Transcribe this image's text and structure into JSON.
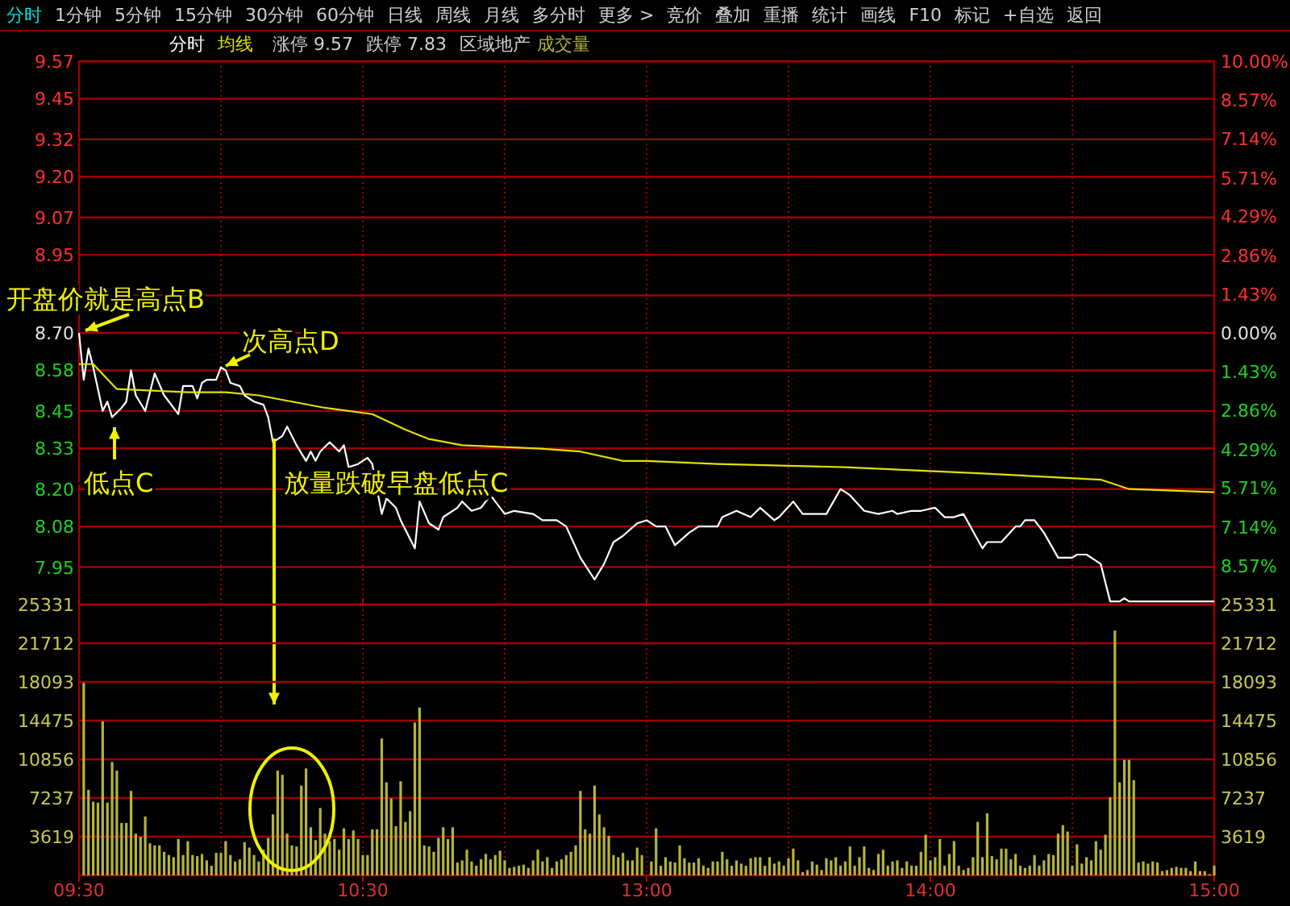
{
  "chart_data": [
    {
      "type": "other",
      "annotations": [
        "分时",
        "1分钟",
        "5分钟",
        "15分钟",
        "30分钟",
        "60分钟",
        "日线",
        "周线",
        "月线",
        "多分时",
        "更多 >",
        "竞价",
        "叠加",
        "重播",
        "统计",
        "画线",
        "F10",
        "标记",
        "+自选",
        "返回"
      ]
    },
    {
      "type": "line",
      "ylim": [
        7.83,
        9.57
      ],
      "yticks": [
        9.57,
        9.45,
        9.32,
        {
          "value": 9.2,
          "label": "9.20"
        },
        9.07,
        8.95,
        {
          "value": 8.82,
          "label": null
        },
        {
          "value": 8.7,
          "label": "8.70"
        },
        8.58,
        8.45,
        8.33,
        {
          "value": 8.2,
          "label": "8.20"
        },
        8.08,
        7.95
      ],
      "y2lim": [
        -10,
        10
      ],
      "y2ticks": [
        {
          "value": 10,
          "label": "10.00%"
        },
        {
          "value": 8.57,
          "label": "8.57%"
        },
        {
          "value": 7.14,
          "label": "7.14%"
        },
        {
          "value": 5.71,
          "label": "5.71%"
        },
        {
          "value": 4.29,
          "label": "4.29%"
        },
        {
          "value": 2.86,
          "label": "2.86%"
        },
        {
          "value": 1.43,
          "label": "1.43%"
        },
        {
          "value": 0,
          "label": "0.00%"
        },
        {
          "value": -1.43,
          "label": "1.43%"
        },
        {
          "value": -2.86,
          "label": "2.86%"
        },
        {
          "value": -4.29,
          "label": "4.29%"
        },
        {
          "value": -5.71,
          "label": "5.71%"
        },
        {
          "value": -7.14,
          "label": "7.14%"
        },
        {
          "value": -8.57,
          "label": "8.57%"
        }
      ],
      "grid": true,
      "legend": "top left",
      "tick_labels": "y",
      "series": [
        {
          "name": "分时",
          "color": "#ffffff",
          "values": [
            8.7,
            8.55,
            8.65,
            8.59,
            null,
            8.45,
            8.48,
            8.43,
            null,
            8.46,
            8.48,
            8.58,
            8.5,
            null,
            8.45,
            null,
            8.57,
            null,
            8.5,
            null,
            null,
            8.44,
            8.53,
            null,
            8.53,
            8.49,
            8.54,
            8.55,
            null,
            8.55,
            8.59,
            8.58,
            8.54,
            null,
            8.53,
            8.5,
            null,
            8.48,
            null,
            8.47,
            8.43,
            8.35,
            null,
            8.37,
            8.4,
            null,
            8.34,
            null,
            8.29,
            8.32,
            8.29,
            8.32,
            null,
            8.35,
            null,
            8.32,
            8.34,
            8.27,
            null,
            8.28,
            null,
            8.3,
            8.28,
            null,
            8.12,
            8.17,
            null,
            8.14,
            8.1,
            null,
            null,
            8.01,
            8.16,
            null,
            8.09,
            null,
            8.07,
            8.11,
            null,
            null,
            8.14,
            8.16,
            null,
            8.13,
            null,
            8.14,
            null,
            8.18,
            null,
            null,
            8.12,
            null,
            8.13,
            null,
            null,
            null,
            8.12,
            null,
            8.1,
            null,
            null,
            8.1,
            null,
            8.08,
            null,
            null,
            7.98,
            null,
            null,
            7.91,
            null,
            7.96,
            null,
            8.03,
            null,
            8.05,
            null,
            null,
            8.09,
            null,
            8.1,
            null,
            8.08,
            null,
            8.08,
            null,
            8.02,
            null,
            null,
            8.06,
            null,
            8.08,
            null,
            null,
            null,
            8.08,
            8.11,
            null,
            null,
            8.13,
            null,
            null,
            8.11,
            null,
            8.14,
            null,
            null,
            8.1,
            8.11,
            null,
            null,
            8.16,
            null,
            8.12,
            null,
            null,
            null,
            null,
            8.12,
            null,
            null,
            8.2,
            null,
            8.18,
            null,
            null,
            8.13,
            null,
            null,
            8.12,
            null,
            null,
            8.13,
            8.12,
            null,
            null,
            8.13,
            null,
            8.13,
            null,
            null,
            8.14,
            null,
            8.11,
            null,
            8.11,
            null,
            8.12,
            null,
            null,
            null,
            8.01,
            8.03,
            null,
            null,
            8.03,
            null,
            null,
            8.08,
            8.08,
            8.1,
            null,
            8.1,
            null,
            8.06,
            null,
            null,
            7.98,
            null,
            null,
            7.98,
            7.99,
            null,
            7.99,
            null,
            null,
            7.96,
            null,
            7.84,
            null,
            7.84,
            7.85,
            7.84,
            null,
            null,
            null,
            null,
            null,
            null,
            null,
            null,
            null,
            null,
            null,
            null,
            null,
            null,
            null,
            null,
            null,
            7.84
          ]
        },
        {
          "name": "均线",
          "color": "#e0e000",
          "values": [
            8.6,
            null,
            null,
            8.6,
            null,
            null,
            null,
            null,
            8.52,
            null,
            null,
            null,
            null,
            null,
            null,
            null,
            null,
            null,
            null,
            null,
            null,
            null,
            null,
            8.51,
            null,
            null,
            null,
            null,
            null,
            null,
            null,
            8.51,
            null,
            null,
            null,
            null,
            null,
            null,
            8.5,
            null,
            null,
            null,
            null,
            null,
            null,
            8.48,
            null,
            null,
            null,
            null,
            null,
            null,
            8.46,
            null,
            null,
            null,
            null,
            null,
            null,
            null,
            null,
            null,
            8.44,
            null,
            null,
            null,
            null,
            null,
            null,
            8.39,
            null,
            null,
            null,
            null,
            8.36,
            null,
            null,
            null,
            null,
            null,
            null,
            8.34,
            null,
            null,
            null,
            null,
            null,
            null,
            null,
            null,
            null,
            null,
            null,
            null,
            null,
            null,
            null,
            8.33,
            null,
            null,
            null,
            null,
            null,
            null,
            null,
            null,
            8.32,
            null,
            null,
            null,
            null,
            null,
            null,
            null,
            null,
            8.29,
            null,
            null,
            null,
            null,
            8.29,
            null,
            null,
            null,
            null,
            null,
            null,
            null,
            null,
            null,
            null,
            null,
            null,
            null,
            null,
            8.28,
            null,
            null,
            null,
            null,
            null,
            null,
            null,
            null,
            null,
            null,
            null,
            null,
            null,
            null,
            null,
            null,
            null,
            null,
            null,
            null,
            null,
            null,
            null,
            null,
            null,
            null,
            8.27,
            null,
            null,
            null,
            null,
            null,
            null,
            null,
            null,
            null,
            null,
            null,
            null,
            null,
            null,
            null,
            null,
            null,
            null,
            null,
            null,
            null,
            null,
            null,
            null,
            null,
            null,
            null,
            null,
            8.25,
            null,
            null,
            null,
            null,
            null,
            null,
            null,
            null,
            null,
            null,
            null,
            null,
            null,
            null,
            null,
            null,
            null,
            null,
            null,
            null,
            null,
            null,
            null,
            null,
            8.23,
            null,
            null,
            null,
            null,
            null,
            8.2,
            null,
            null,
            null,
            null,
            null,
            null,
            null,
            null,
            null,
            null,
            null,
            null,
            null,
            null,
            null,
            null,
            null,
            8.19
          ]
        }
      ],
      "annotations": [
        "涨停 9.57",
        "跌停 7.83",
        "区域地产",
        "开盘价就是高点B",
        "次高点D",
        "低点C",
        "放量跌破早盘低点C"
      ]
    },
    {
      "type": "bar",
      "categories": [
        "09:30",
        null,
        null,
        null,
        null,
        null,
        null,
        null,
        null,
        null,
        null,
        null,
        null,
        null,
        null,
        null,
        null,
        null,
        null,
        null,
        null,
        null,
        null,
        null,
        null,
        null,
        null,
        null,
        null,
        null,
        null,
        null,
        null,
        null,
        null,
        null,
        null,
        null,
        null,
        null,
        null,
        null,
        null,
        null,
        null,
        null,
        null,
        null,
        null,
        null,
        null,
        null,
        null,
        null,
        null,
        null,
        null,
        null,
        null,
        null,
        "10:30",
        null,
        null,
        null,
        null,
        null,
        null,
        null,
        null,
        null,
        null,
        null,
        null,
        null,
        null,
        null,
        null,
        null,
        null,
        null,
        null,
        null,
        null,
        null,
        null,
        null,
        null,
        null,
        null,
        null,
        null,
        null,
        null,
        null,
        null,
        null,
        null,
        null,
        null,
        null,
        null,
        null,
        null,
        null,
        null,
        null,
        null,
        null,
        null,
        null,
        null,
        null,
        null,
        null,
        null,
        null,
        null,
        null,
        null,
        null,
        "13:00",
        null,
        null,
        null,
        null,
        null,
        null,
        null,
        null,
        null,
        null,
        null,
        null,
        null,
        null,
        null,
        null,
        null,
        null,
        null,
        null,
        null,
        null,
        null,
        null,
        null,
        null,
        null,
        null,
        null,
        null,
        null,
        null,
        null,
        null,
        null,
        null,
        null,
        null,
        null,
        null,
        null,
        null,
        null,
        null,
        null,
        null,
        null,
        null,
        null,
        null,
        null,
        null,
        null,
        null,
        null,
        null,
        null,
        null,
        null,
        "14:00",
        null,
        null,
        null,
        null,
        null,
        null,
        null,
        null,
        null,
        null,
        null,
        null,
        null,
        null,
        null,
        null,
        null,
        null,
        null,
        null,
        null,
        null,
        null,
        null,
        null,
        null,
        null,
        null,
        null,
        null,
        null,
        null,
        null,
        null,
        null,
        null,
        null,
        null,
        null,
        null,
        null,
        null,
        null,
        null,
        null,
        null,
        null,
        null,
        null,
        null,
        null,
        null,
        null,
        null,
        null,
        null,
        null,
        null,
        null,
        "15:00"
      ],
      "ylim": [
        0,
        25331
      ],
      "yticks": [
        3619,
        7237,
        10856,
        14475,
        18093,
        21712,
        25331
      ],
      "y2lim": [
        0,
        25331
      ],
      "y2ticks": [
        3619,
        7237,
        10856,
        14475,
        18093,
        21712,
        25331
      ],
      "grid": true,
      "legend": "top left",
      "series": [
        {
          "name": "成交量",
          "color": "#b4b43c",
          "values": [
            null,
            18000,
            8000,
            6900,
            6800,
            14400,
            6800,
            10600,
            9800,
            4900,
            4900,
            7900,
            3900,
            3600,
            5500,
            3000,
            2800,
            2800,
            2200,
            1900,
            1700,
            3400,
            1900,
            3200,
            1900,
            1800,
            2000,
            1400,
            900,
            2100,
            2100,
            3200,
            1900,
            1300,
            1500,
            3100,
            2600,
            1900,
            1300,
            2400,
            3500,
            5700,
            9800,
            9400,
            3900,
            2800,
            2700,
            8400,
            10000,
            4500,
            3300,
            6300,
            3900,
            3200,
            3400,
            2400,
            4400,
            3400,
            4200,
            3400,
            1900,
            1900,
            4300,
            4300,
            12800,
            8700,
            7200,
            4600,
            8800,
            5000,
            6000,
            14300,
            15700,
            2800,
            2700,
            2200,
            3500,
            4500,
            3400,
            4500,
            1200,
            1400,
            2400,
            1300,
            900,
            1500,
            2000,
            1500,
            1900,
            2300,
            1400,
            700,
            800,
            900,
            1000,
            700,
            1400,
            2400,
            1300,
            1700,
            700,
            1300,
            1500,
            1900,
            2200,
            2800,
            7900,
            4300,
            3900,
            8400,
            5700,
            4500,
            3700,
            1900,
            1700,
            2100,
            1400,
            1400,
            2600,
            1900,
            null,
            1300,
            4400,
            900,
            1700,
            1300,
            1200,
            2800,
            1600,
            1200,
            1200,
            1600,
            900,
            700,
            1300,
            1300,
            2200,
            1500,
            900,
            1400,
            1100,
            900,
            1600,
            1700,
            1700,
            900,
            1700,
            1100,
            1300,
            900,
            1600,
            2500,
            1400,
            300,
            500,
            1300,
            1000,
            500,
            1600,
            1400,
            1700,
            900,
            1300,
            2700,
            900,
            1700,
            2700,
            700,
            500,
            2000,
            2400,
            900,
            1300,
            1400,
            700,
            1300,
            900,
            900,
            2200,
            3800,
            1400,
            1700,
            3400,
            900,
            2000,
            3200,
            900,
            500,
            700,
            1700,
            5000,
            1700,
            5800,
            1800,
            1500,
            2500,
            2500,
            1500,
            2000,
            900,
            700,
            900,
            1900,
            900,
            1400,
            2000,
            1900,
            3900,
            4700,
            4100,
            900,
            2900,
            1100,
            1700,
            1400,
            3200,
            2400,
            3800,
            7300,
            22900,
            8700,
            10800,
            10800,
            8900,
            1200,
            1300,
            1100,
            1300,
            1200,
            400,
            500,
            700,
            800,
            700,
            700,
            400,
            1300,
            400,
            400,
            100,
            900
          ]
        }
      ]
    }
  ]
}
